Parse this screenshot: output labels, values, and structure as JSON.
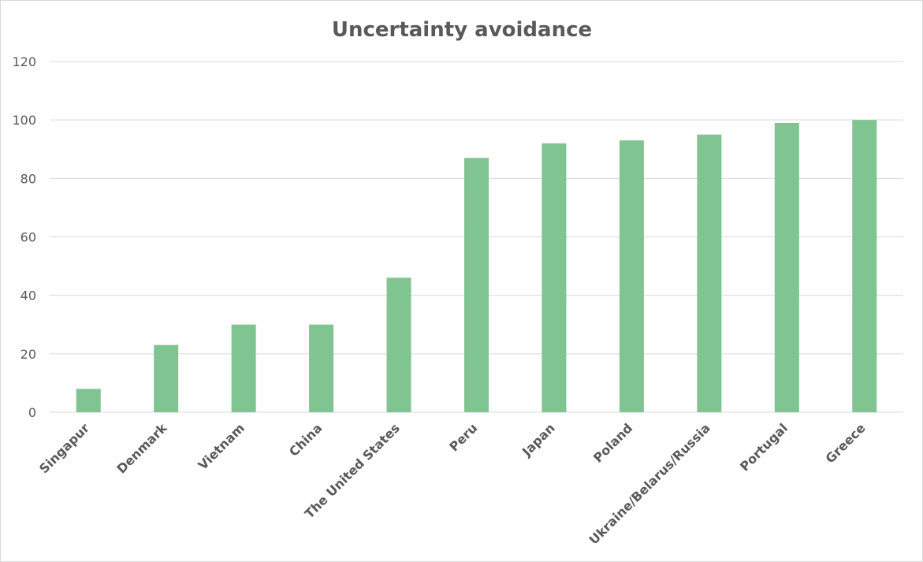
{
  "chart_data": {
    "type": "bar",
    "title": "Uncertainty avoidance",
    "categories": [
      "Singapur",
      "Denmark",
      "Vietnam",
      "China",
      "The United States",
      "Peru",
      "Japan",
      "Poland",
      "Ukraine/Belarus/Russia",
      "Portugal",
      "Greece"
    ],
    "values": [
      8,
      23,
      30,
      30,
      46,
      87,
      92,
      93,
      95,
      99,
      100
    ],
    "ylim": [
      0,
      120
    ],
    "yticks": [
      "0",
      "20",
      "40",
      "60",
      "80",
      "100",
      "120"
    ],
    "grid": true,
    "legend": "none",
    "bar_color": "#7fc491"
  }
}
